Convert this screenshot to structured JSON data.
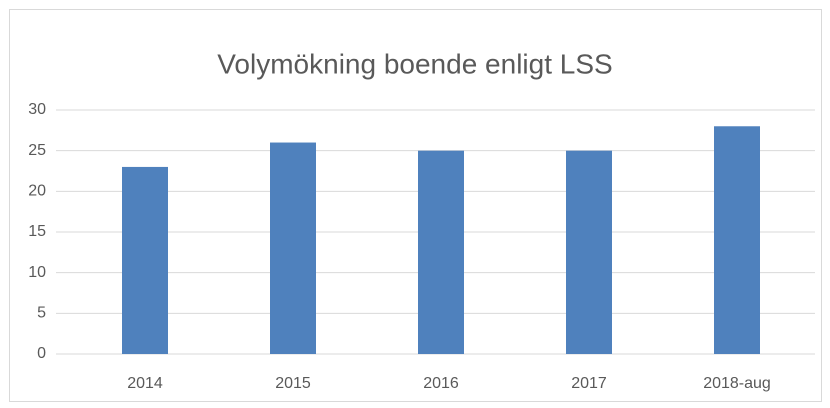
{
  "chart_data": {
    "type": "bar",
    "title": "Volymökning boende enligt LSS",
    "categories": [
      "2014",
      "2015",
      "2016",
      "2017",
      "2018-aug"
    ],
    "values": [
      23,
      26,
      25,
      25,
      28
    ],
    "color": "#4f81bd",
    "ylim": [
      0,
      30
    ],
    "yticks": [
      0,
      5,
      10,
      15,
      20,
      25,
      30
    ],
    "grid": true
  }
}
